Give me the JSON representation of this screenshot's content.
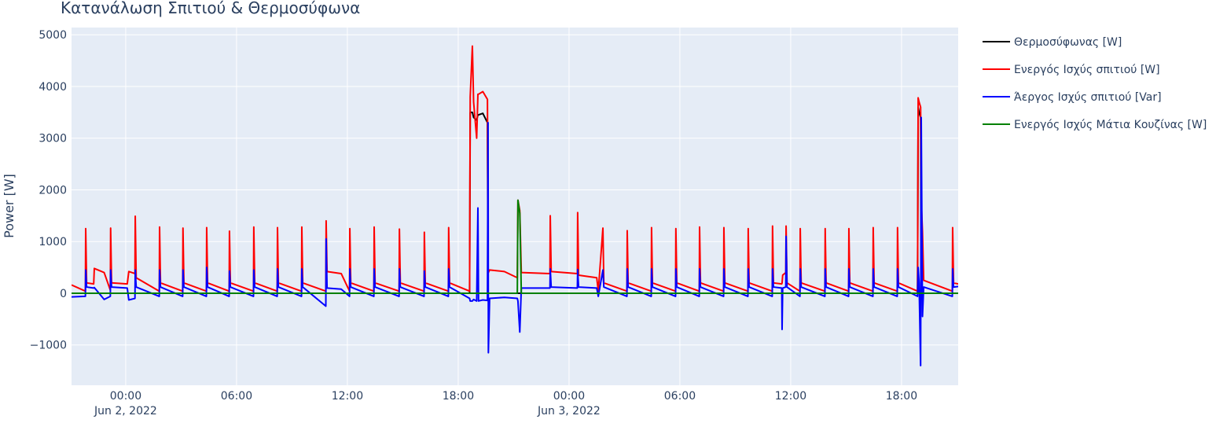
{
  "chart_data": {
    "type": "line",
    "title": "Κατανάλωση Σπιτιού & Θερμοσύφωνα",
    "y_label": "Power [W]",
    "xlim": [
      "2022-06-01 21:04",
      "2022-06-03 21:04"
    ],
    "xticks": [
      {
        "value": "2022-06-02 00:00",
        "label": "00:00\nJun 2, 2022"
      },
      {
        "value": "2022-06-02 06:00",
        "label": "06:00"
      },
      {
        "value": "2022-06-02 12:00",
        "label": "12:00"
      },
      {
        "value": "2022-06-02 18:00",
        "label": "18:00"
      },
      {
        "value": "2022-06-03 00:00",
        "label": "00:00\nJun 3, 2022"
      },
      {
        "value": "2022-06-03 06:00",
        "label": "06:00"
      },
      {
        "value": "2022-06-03 12:00",
        "label": "12:00"
      },
      {
        "value": "2022-06-03 18:00",
        "label": "18:00"
      }
    ],
    "ylim": [
      -1780,
      5140
    ],
    "yticks": [
      {
        "value": -1000,
        "label": "−1000"
      },
      0,
      1000,
      2000,
      3000,
      4000,
      5000
    ],
    "grid": true,
    "legend": "outside-right",
    "x": [
      "2022-06-01 21:04",
      "2022-06-01 21:49",
      "2022-06-01 21:50",
      "2022-06-01 21:53",
      "2022-06-01 22:16",
      "2022-06-01 22:18",
      "2022-06-01 22:50",
      "2022-06-01 23:10",
      "2022-06-01 23:11",
      "2022-06-01 23:14",
      "2022-06-02 00:05",
      "2022-06-02 00:10",
      "2022-06-02 00:30",
      "2022-06-02 00:31",
      "2022-06-02 00:34",
      "2022-06-02 01:49",
      "2022-06-02 01:50",
      "2022-06-02 01:53",
      "2022-06-02 03:05",
      "2022-06-02 03:06",
      "2022-06-02 03:09",
      "2022-06-02 04:22",
      "2022-06-02 04:23",
      "2022-06-02 04:26",
      "2022-06-02 05:36",
      "2022-06-02 05:37",
      "2022-06-02 05:40",
      "2022-06-02 06:55",
      "2022-06-02 06:56",
      "2022-06-02 06:59",
      "2022-06-02 08:12",
      "2022-06-02 08:13",
      "2022-06-02 08:16",
      "2022-06-02 09:31",
      "2022-06-02 09:32",
      "2022-06-02 09:35",
      "2022-06-02 10:50",
      "2022-06-02 10:51",
      "2022-06-02 10:54",
      "2022-06-02 11:40",
      "2022-06-02 12:07",
      "2022-06-02 12:08",
      "2022-06-02 12:11",
      "2022-06-02 13:26",
      "2022-06-02 13:27",
      "2022-06-02 13:30",
      "2022-06-02 14:48",
      "2022-06-02 14:49",
      "2022-06-02 14:52",
      "2022-06-02 16:09",
      "2022-06-02 16:10",
      "2022-06-02 16:13",
      "2022-06-02 17:28",
      "2022-06-02 17:29",
      "2022-06-02 17:32",
      "2022-06-02 18:37",
      "2022-06-02 18:39",
      "2022-06-02 18:46",
      "2022-06-02 18:50",
      "2022-06-02 19:00",
      "2022-06-02 19:04",
      "2022-06-02 19:06",
      "2022-06-02 19:20",
      "2022-06-02 19:35",
      "2022-06-02 19:37",
      "2022-06-02 19:38",
      "2022-06-02 19:42",
      "2022-06-02 20:30",
      "2022-06-02 21:12",
      "2022-06-02 21:14",
      "2022-06-02 21:20",
      "2022-06-02 21:25",
      "2022-06-02 22:58",
      "2022-06-02 22:59",
      "2022-06-02 23:02",
      "2022-06-03 00:27",
      "2022-06-03 00:28",
      "2022-06-03 00:31",
      "2022-06-03 01:30",
      "2022-06-03 01:35",
      "2022-06-03 01:50",
      "2022-06-03 01:53",
      "2022-06-03 03:08",
      "2022-06-03 03:09",
      "2022-06-03 03:12",
      "2022-06-03 04:27",
      "2022-06-03 04:28",
      "2022-06-03 04:31",
      "2022-06-03 05:46",
      "2022-06-03 05:47",
      "2022-06-03 05:50",
      "2022-06-03 07:03",
      "2022-06-03 07:04",
      "2022-06-03 07:07",
      "2022-06-03 08:22",
      "2022-06-03 08:23",
      "2022-06-03 08:26",
      "2022-06-03 09:41",
      "2022-06-03 09:42",
      "2022-06-03 09:45",
      "2022-06-03 11:00",
      "2022-06-03 11:01",
      "2022-06-03 11:04",
      "2022-06-03 11:31",
      "2022-06-03 11:32",
      "2022-06-03 11:34",
      "2022-06-03 11:44",
      "2022-06-03 11:45",
      "2022-06-03 11:48",
      "2022-06-03 12:30",
      "2022-06-03 12:31",
      "2022-06-03 12:34",
      "2022-06-03 13:51",
      "2022-06-03 13:52",
      "2022-06-03 13:55",
      "2022-06-03 15:08",
      "2022-06-03 15:09",
      "2022-06-03 15:12",
      "2022-06-03 16:27",
      "2022-06-03 16:28",
      "2022-06-03 16:31",
      "2022-06-03 17:46",
      "2022-06-03 17:47",
      "2022-06-03 17:50",
      "2022-06-03 18:52",
      "2022-06-03 18:54",
      "2022-06-03 18:57",
      "2022-06-03 19:02",
      "2022-06-03 19:04",
      "2022-06-03 19:08",
      "2022-06-03 19:12",
      "2022-06-03 20:45",
      "2022-06-03 20:46",
      "2022-06-03 20:49",
      "2022-06-03 21:04"
    ],
    "series": [
      {
        "name": "Θερμοσύφωνας [W]",
        "color": "#000000",
        "values": [
          0,
          0,
          0,
          0,
          0,
          0,
          0,
          0,
          0,
          0,
          0,
          0,
          0,
          0,
          0,
          0,
          0,
          0,
          0,
          0,
          0,
          0,
          0,
          0,
          0,
          0,
          0,
          0,
          0,
          0,
          0,
          0,
          0,
          0,
          0,
          0,
          0,
          0,
          0,
          0,
          0,
          0,
          0,
          0,
          0,
          0,
          0,
          0,
          0,
          0,
          0,
          0,
          0,
          0,
          0,
          0,
          3500,
          3500,
          3400,
          3350,
          3450,
          3450,
          3480,
          3300,
          0,
          0,
          0,
          0,
          0,
          0,
          0,
          0,
          0,
          0,
          0,
          0,
          0,
          0,
          0,
          0,
          0,
          0,
          0,
          0,
          0,
          0,
          0,
          0,
          0,
          0,
          0,
          0,
          0,
          0,
          0,
          0,
          0,
          0,
          0,
          0,
          0,
          0,
          0,
          0,
          0,
          0,
          0,
          0,
          0,
          0,
          0,
          0,
          0,
          0,
          0,
          0,
          0,
          0,
          0,
          0,
          0,
          0,
          0,
          0,
          0,
          3600,
          3500,
          3400,
          0,
          0,
          0,
          0,
          0,
          0,
          0
        ]
      },
      {
        "name": "Ενεργός Ισχύς σπιτιού [W]",
        "color": "#ff0000",
        "values": [
          160,
          40,
          1250,
          200,
          180,
          480,
          400,
          60,
          1260,
          200,
          180,
          420,
          380,
          1490,
          300,
          40,
          1280,
          200,
          40,
          1260,
          200,
          40,
          1270,
          200,
          40,
          1200,
          200,
          40,
          1280,
          200,
          40,
          1270,
          200,
          40,
          1280,
          200,
          40,
          1400,
          420,
          380,
          40,
          1250,
          200,
          40,
          1280,
          200,
          40,
          1240,
          200,
          40,
          1180,
          200,
          40,
          1270,
          200,
          40,
          3800,
          4780,
          3700,
          3000,
          3850,
          3850,
          3900,
          3750,
          400,
          400,
          450,
          420,
          300,
          1800,
          1600,
          400,
          380,
          1500,
          420,
          380,
          1560,
          350,
          300,
          40,
          1260,
          200,
          40,
          1210,
          200,
          40,
          1270,
          200,
          40,
          1250,
          200,
          40,
          1280,
          200,
          40,
          1270,
          200,
          40,
          1250,
          200,
          40,
          1300,
          200,
          180,
          200,
          350,
          400,
          1300,
          200,
          40,
          1250,
          200,
          40,
          1250,
          200,
          40,
          1250,
          200,
          40,
          1270,
          200,
          40,
          1270,
          200,
          40,
          3780,
          3700,
          3600,
          1800,
          1200,
          250,
          40,
          1270,
          200,
          180
        ]
      },
      {
        "name": "Άεργος Ισχύς σπιτιού [Var]",
        "color": "#0000ff",
        "values": [
          -70,
          -60,
          450,
          120,
          100,
          110,
          -120,
          -60,
          450,
          120,
          100,
          -130,
          -100,
          450,
          120,
          -60,
          450,
          120,
          -60,
          450,
          120,
          -60,
          500,
          120,
          -60,
          430,
          120,
          -60,
          450,
          120,
          -60,
          470,
          120,
          -60,
          470,
          120,
          -250,
          1050,
          100,
          80,
          -60,
          470,
          120,
          -60,
          470,
          120,
          -60,
          470,
          120,
          -60,
          430,
          120,
          -60,
          470,
          120,
          -100,
          -150,
          -150,
          -120,
          -150,
          1650,
          -150,
          -130,
          -140,
          3300,
          -1150,
          -100,
          -80,
          -100,
          -150,
          -750,
          100,
          100,
          470,
          120,
          100,
          460,
          120,
          100,
          -60,
          450,
          120,
          -60,
          470,
          120,
          -60,
          470,
          120,
          -60,
          470,
          120,
          -60,
          470,
          120,
          -60,
          470,
          120,
          -60,
          470,
          120,
          -60,
          470,
          120,
          100,
          -700,
          100,
          120,
          1100,
          120,
          -60,
          470,
          120,
          -60,
          470,
          120,
          -60,
          470,
          120,
          -60,
          470,
          120,
          -60,
          470,
          120,
          -60,
          500,
          200,
          -1400,
          3400,
          -450,
          120,
          -60,
          470,
          120,
          130
        ]
      },
      {
        "name": "Ενεργός Ισχύς Μάτια Κουζίνας [W]",
        "color": "#008000",
        "values": [
          0,
          0,
          0,
          0,
          0,
          0,
          0,
          0,
          0,
          0,
          0,
          0,
          0,
          0,
          0,
          0,
          0,
          0,
          0,
          0,
          0,
          0,
          0,
          0,
          0,
          0,
          0,
          0,
          0,
          0,
          0,
          0,
          0,
          0,
          0,
          0,
          0,
          0,
          0,
          0,
          0,
          0,
          0,
          0,
          0,
          0,
          0,
          0,
          0,
          0,
          0,
          0,
          0,
          0,
          0,
          0,
          0,
          0,
          0,
          0,
          0,
          0,
          0,
          0,
          0,
          0,
          0,
          0,
          0,
          1800,
          1550,
          0,
          0,
          0,
          0,
          0,
          0,
          0,
          0,
          0,
          0,
          0,
          0,
          0,
          0,
          0,
          0,
          0,
          0,
          0,
          0,
          0,
          0,
          0,
          0,
          0,
          0,
          0,
          0,
          0,
          0,
          0,
          0,
          0,
          0,
          0,
          0,
          0,
          0,
          0,
          0,
          0,
          0,
          0,
          0,
          0,
          0,
          0,
          0,
          0,
          0,
          0,
          0,
          0,
          0,
          0,
          0,
          0,
          0,
          0,
          0,
          0,
          0,
          0,
          0
        ]
      }
    ]
  }
}
